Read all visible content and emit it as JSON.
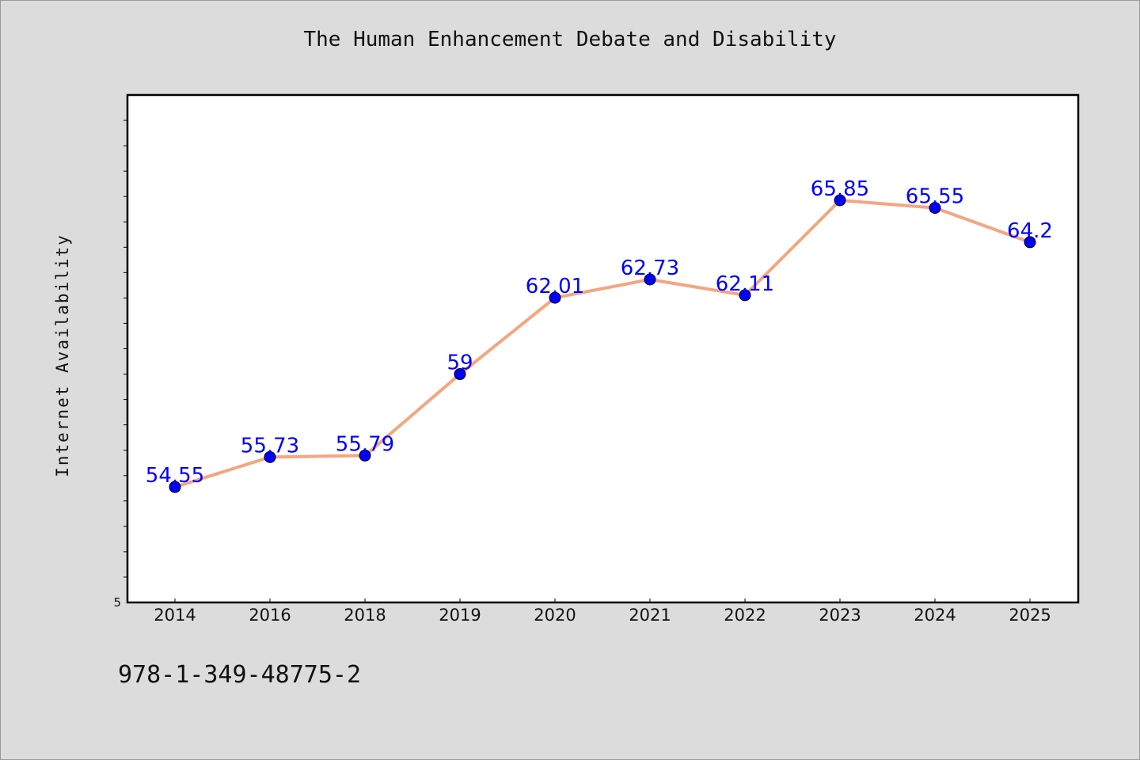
{
  "page": {
    "background": "#dcdcdc",
    "footer_code": "978-1-349-48775-2"
  },
  "chart_data": {
    "type": "line",
    "title": "The Human Enhancement Debate and Disability",
    "xlabel": "",
    "ylabel": "Internet Availability",
    "categories": [
      "2014",
      "2016",
      "2018",
      "2019",
      "2020",
      "2021",
      "2022",
      "2023",
      "2024",
      "2025"
    ],
    "series": [
      {
        "values": [
          54.55,
          55.73,
          55.79,
          59,
          62.01,
          62.73,
          62.11,
          65.85,
          65.55,
          64.2
        ],
        "labels": [
          "54.55",
          "55.73",
          "55.79",
          "59",
          "62.01",
          "62.73",
          "62.11",
          "65.85",
          "65.55",
          "64.2"
        ],
        "line_color": "#f4a582",
        "marker_color": "#0000ff",
        "label_color": "#0000ff"
      }
    ],
    "ylim": [
      50,
      70
    ],
    "ytick_labels": [
      {
        "value": 50,
        "label": "5"
      }
    ],
    "grid": false,
    "legend": "none"
  }
}
